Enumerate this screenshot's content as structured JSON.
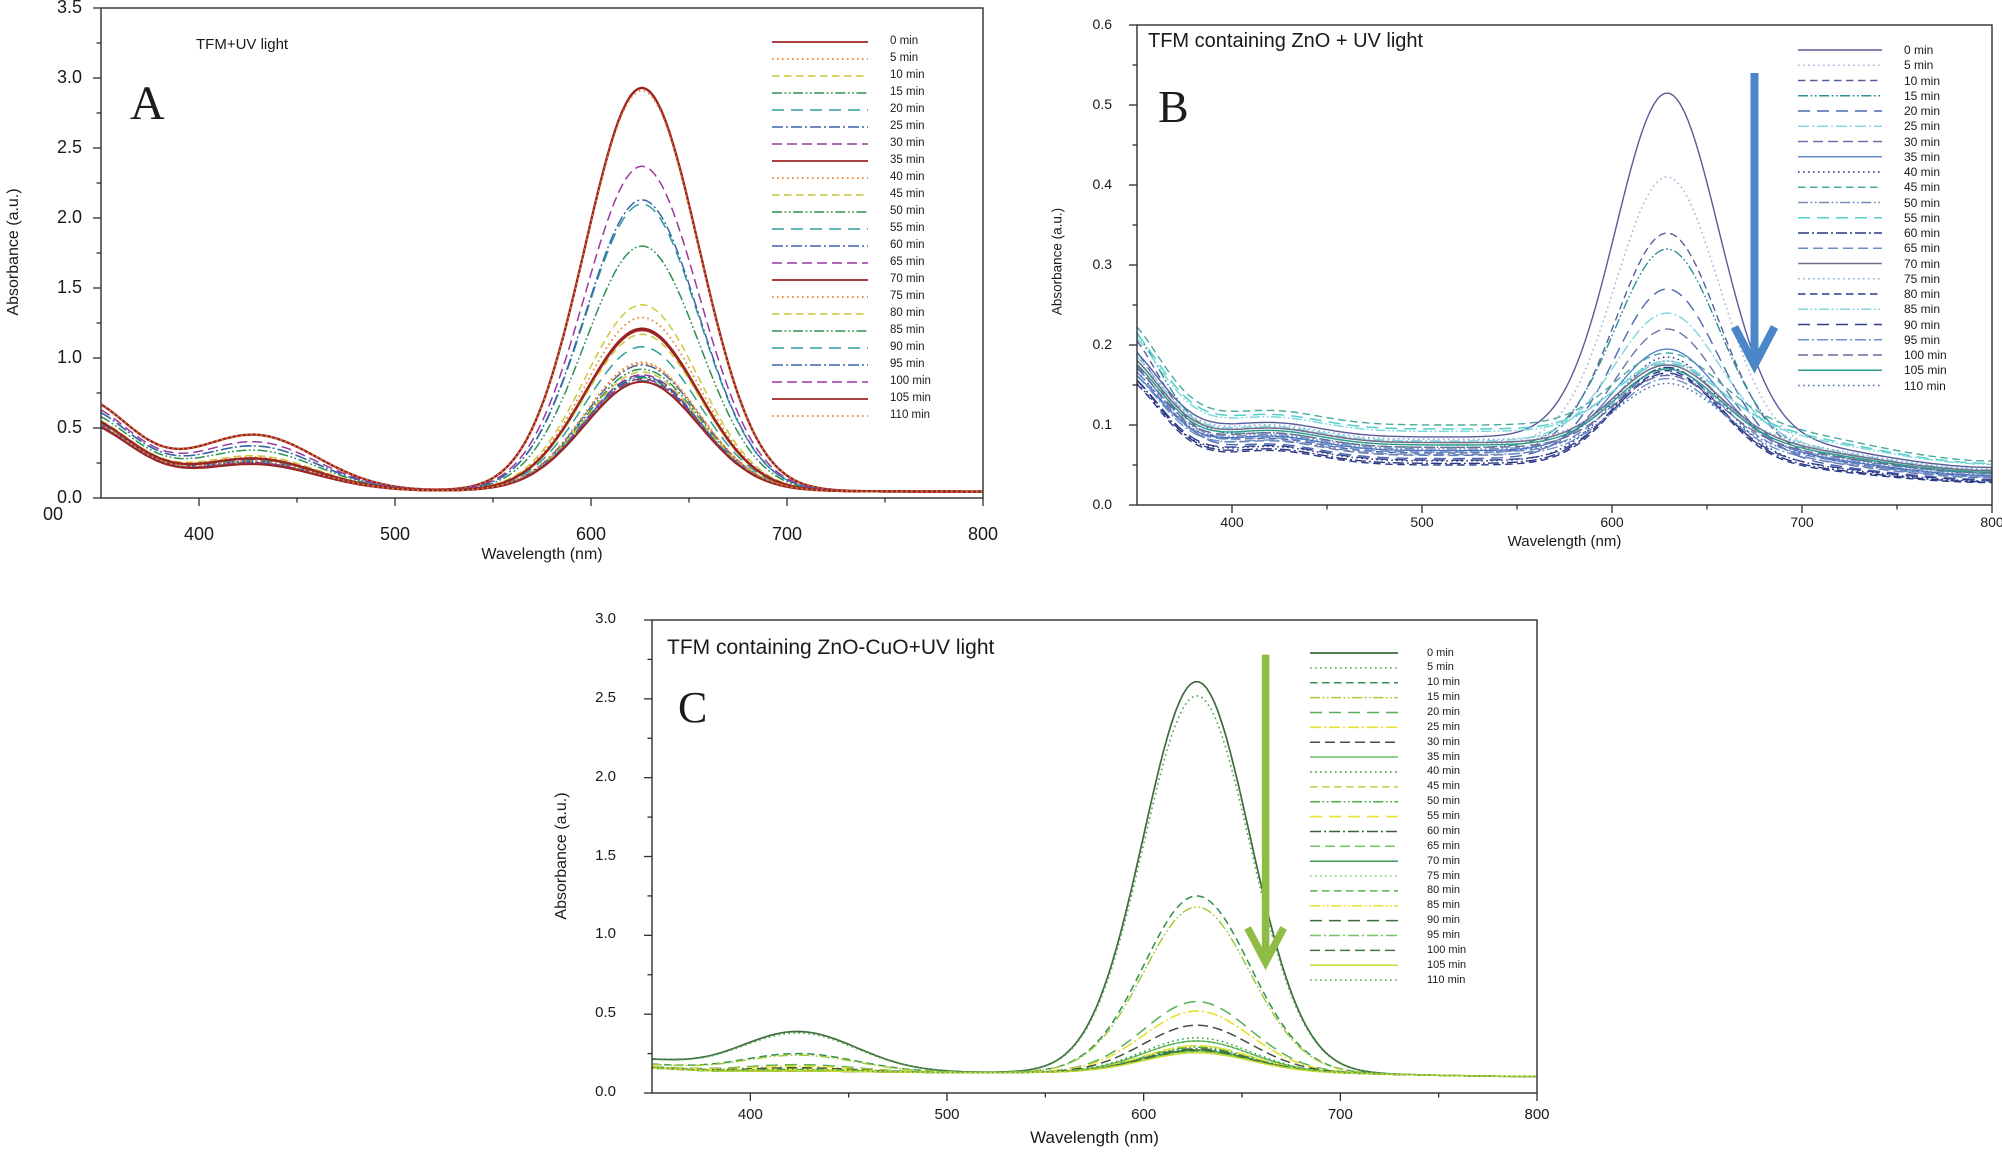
{
  "figure": {
    "background": "#ffffff"
  },
  "chart_data": [
    {
      "id": "A",
      "type": "line",
      "panel_letter": "A",
      "title": "TFM+UV light",
      "xlabel": "Wavelength (nm)",
      "ylabel": "Absorbance (a.u.)",
      "xlim": [
        350,
        800
      ],
      "ylim": [
        0,
        3.5
      ],
      "x_ticks": [
        400,
        500,
        600,
        700,
        800
      ],
      "x_minor_ticks": [
        450,
        550,
        650,
        750
      ],
      "y_tick_labels": [
        "0.0",
        "0.5",
        "1.0",
        "1.5",
        "2.0",
        "2.5",
        "3.0",
        "3.5"
      ],
      "y_minor_step": 0.25,
      "corner_label": "00",
      "legend_loc": "inside right",
      "grid": false,
      "peak_wavelength_nm": 626,
      "model": {
        "base": 0.05,
        "tail": 0.046,
        "peakMu": 626,
        "peakSig": 29,
        "bumpMu": 428,
        "bumpSig": 32,
        "leftMu": 338,
        "leftSig": 27
      },
      "series": [
        {
          "label": "0 min",
          "color": "#9b2423",
          "dash": "solid",
          "lw": 2.4,
          "peak": 2.93,
          "left": 0.71,
          "bump": 0.45
        },
        {
          "label": "5 min",
          "color": "#e8842e",
          "dash": "dotted",
          "lw": 1.8,
          "peak": 2.91,
          "left": 0.71,
          "bump": 0.45
        },
        {
          "label": "10 min",
          "color": "#c9c93b",
          "dash": "dashed",
          "lw": 1.5,
          "peak": 1.38,
          "left": 0.59,
          "bump": 0.3
        },
        {
          "label": "15 min",
          "color": "#2e9150",
          "dash": "dash-dot-dot",
          "lw": 1.5,
          "peak": 1.8,
          "left": 0.62,
          "bump": 0.34
        },
        {
          "label": "20 min",
          "color": "#2e9d9d",
          "dash": "long-dash",
          "lw": 1.5,
          "peak": 2.1,
          "left": 0.65,
          "bump": 0.37
        },
        {
          "label": "25 min",
          "color": "#3c63a8",
          "dash": "dash-dot",
          "lw": 1.5,
          "peak": 2.13,
          "left": 0.65,
          "bump": 0.37
        },
        {
          "label": "30 min",
          "color": "#99399d",
          "dash": "medium-dash",
          "lw": 1.5,
          "peak": 2.37,
          "left": 0.67,
          "bump": 0.4
        },
        {
          "label": "35 min",
          "color": "#9b2423",
          "dash": "solid",
          "lw": 2.4,
          "peak": 1.2,
          "left": 0.58,
          "bump": 0.28
        },
        {
          "label": "40 min",
          "color": "#e8842e",
          "dash": "dotted",
          "lw": 1.8,
          "peak": 1.29,
          "left": 0.58,
          "bump": 0.29
        },
        {
          "label": "45 min",
          "color": "#c9c93b",
          "dash": "dashed",
          "lw": 1.5,
          "peak": 1.17,
          "left": 0.57,
          "bump": 0.28
        },
        {
          "label": "50 min",
          "color": "#2e9150",
          "dash": "dash-dot-dot",
          "lw": 1.5,
          "peak": 0.92,
          "left": 0.55,
          "bump": 0.25
        },
        {
          "label": "55 min",
          "color": "#2e9d9d",
          "dash": "long-dash",
          "lw": 1.5,
          "peak": 1.08,
          "left": 0.57,
          "bump": 0.27
        },
        {
          "label": "60 min",
          "color": "#3c63a8",
          "dash": "dash-dot",
          "lw": 1.5,
          "peak": 0.95,
          "left": 0.56,
          "bump": 0.26
        },
        {
          "label": "65 min",
          "color": "#99399d",
          "dash": "medium-dash",
          "lw": 1.5,
          "peak": 0.88,
          "left": 0.55,
          "bump": 0.25
        },
        {
          "label": "70 min",
          "color": "#9b2423",
          "dash": "solid",
          "lw": 2.4,
          "peak": 1.21,
          "left": 0.58,
          "bump": 0.28
        },
        {
          "label": "75 min",
          "color": "#e8842e",
          "dash": "dotted",
          "lw": 1.8,
          "peak": 0.97,
          "left": 0.56,
          "bump": 0.26
        },
        {
          "label": "80 min",
          "color": "#c9c93b",
          "dash": "dashed",
          "lw": 1.5,
          "peak": 0.9,
          "left": 0.55,
          "bump": 0.25
        },
        {
          "label": "85 min",
          "color": "#2e9150",
          "dash": "dash-dot-dot",
          "lw": 1.5,
          "peak": 0.86,
          "left": 0.55,
          "bump": 0.25
        },
        {
          "label": "90 min",
          "color": "#2e9d9d",
          "dash": "long-dash",
          "lw": 1.5,
          "peak": 0.84,
          "left": 0.55,
          "bump": 0.24
        },
        {
          "label": "95 min",
          "color": "#3c63a8",
          "dash": "dash-dot",
          "lw": 1.5,
          "peak": 0.87,
          "left": 0.55,
          "bump": 0.25
        },
        {
          "label": "100 min",
          "color": "#99399d",
          "dash": "medium-dash",
          "lw": 1.5,
          "peak": 0.85,
          "left": 0.55,
          "bump": 0.25
        },
        {
          "label": "105 min",
          "color": "#9b2423",
          "dash": "solid",
          "lw": 2.0,
          "peak": 0.83,
          "left": 0.54,
          "bump": 0.24
        },
        {
          "label": "110 min",
          "color": "#e8842e",
          "dash": "dotted",
          "lw": 1.8,
          "peak": 0.96,
          "left": 0.56,
          "bump": 0.26
        }
      ]
    },
    {
      "id": "B",
      "type": "line",
      "panel_letter": "B",
      "title": "TFM containing ZnO + UV light",
      "xlabel": "Wavelength (nm)",
      "ylabel": "Absorbance (a.u.)",
      "xlim": [
        350,
        800
      ],
      "ylim": [
        0,
        0.6
      ],
      "x_ticks": [
        400,
        500,
        600,
        700,
        800
      ],
      "x_minor_ticks": [
        450,
        550,
        650,
        750
      ],
      "y_tick_labels": [
        "0.0",
        "0.1",
        "0.2",
        "0.3",
        "0.4",
        "0.5",
        "0.6"
      ],
      "y_minor_step": 0.05,
      "legend_loc": "inside right",
      "grid": false,
      "peak_wavelength_nm": 629,
      "arrow": {
        "color": "#4a86c8",
        "direction": "down",
        "x_nm": 675,
        "from_abs": 0.54,
        "to_abs": 0.175,
        "width": 8,
        "head": 20
      },
      "model": {
        "peakMu": 629,
        "peakSig": 27,
        "bumpMu": 420,
        "bumpSig": 26,
        "leftMu": 338,
        "leftSig": 23
      },
      "series": [
        {
          "label": "0 min",
          "color": "#5a5a9a",
          "dash": "solid",
          "lw": 1.4,
          "peak": 0.515,
          "left": 0.205,
          "bump": 0.103,
          "base": 0.085,
          "tail": 0.047
        },
        {
          "label": "5 min",
          "color": "#9fb8d8",
          "dash": "dotted",
          "lw": 1.6,
          "peak": 0.41,
          "left": 0.185,
          "bump": 0.093,
          "base": 0.075,
          "tail": 0.041
        },
        {
          "label": "10 min",
          "color": "#565fa0",
          "dash": "dashed",
          "lw": 1.4,
          "peak": 0.34,
          "left": 0.225,
          "bump": 0.083,
          "base": 0.065,
          "tail": 0.036
        },
        {
          "label": "15 min",
          "color": "#2f8f96",
          "dash": "dash-dot-dot",
          "lw": 1.4,
          "peak": 0.32,
          "left": 0.235,
          "bump": 0.09,
          "base": 0.072,
          "tail": 0.04
        },
        {
          "label": "20 min",
          "color": "#4a69b0",
          "dash": "long-dash",
          "lw": 1.4,
          "peak": 0.27,
          "left": 0.21,
          "bump": 0.076,
          "base": 0.058,
          "tail": 0.032
        },
        {
          "label": "25 min",
          "color": "#8cd6e0",
          "dash": "dash-dot",
          "lw": 1.5,
          "peak": 0.24,
          "left": 0.2,
          "bump": 0.098,
          "base": 0.08,
          "tail": 0.044
        },
        {
          "label": "30 min",
          "color": "#6b74a8",
          "dash": "medium-dash",
          "lw": 1.4,
          "peak": 0.22,
          "left": 0.19,
          "bump": 0.08,
          "base": 0.062,
          "tail": 0.034
        },
        {
          "label": "35 min",
          "color": "#4a78c8",
          "dash": "solid",
          "lw": 1.3,
          "peak": 0.195,
          "left": 0.175,
          "bump": 0.086,
          "base": 0.068,
          "tail": 0.037
        },
        {
          "label": "40 min",
          "color": "#2a3a7c",
          "dash": "dotted",
          "lw": 1.5,
          "peak": 0.185,
          "left": 0.165,
          "bump": 0.073,
          "base": 0.055,
          "tail": 0.03
        },
        {
          "label": "45 min",
          "color": "#49a8a0",
          "dash": "dashed",
          "lw": 1.4,
          "peak": 0.19,
          "left": 0.24,
          "bump": 0.118,
          "base": 0.1,
          "tail": 0.055
        },
        {
          "label": "50 min",
          "color": "#7a8cba",
          "dash": "dash-dot-dot",
          "lw": 1.4,
          "peak": 0.18,
          "left": 0.185,
          "bump": 0.088,
          "base": 0.07,
          "tail": 0.039
        },
        {
          "label": "55 min",
          "color": "#55cfcb",
          "dash": "long-dash",
          "lw": 1.5,
          "peak": 0.177,
          "left": 0.23,
          "bump": 0.113,
          "base": 0.095,
          "tail": 0.052
        },
        {
          "label": "60 min",
          "color": "#2a3580",
          "dash": "dash-dot",
          "lw": 1.4,
          "peak": 0.172,
          "left": 0.17,
          "bump": 0.07,
          "base": 0.052,
          "tail": 0.029
        },
        {
          "label": "65 min",
          "color": "#6a8cc8",
          "dash": "medium-dash",
          "lw": 1.4,
          "peak": 0.17,
          "left": 0.18,
          "bump": 0.084,
          "base": 0.066,
          "tail": 0.036
        },
        {
          "label": "70 min",
          "color": "#70708e",
          "dash": "solid",
          "lw": 1.6,
          "peak": 0.175,
          "left": 0.195,
          "bump": 0.096,
          "base": 0.078,
          "tail": 0.043
        },
        {
          "label": "75 min",
          "color": "#88aad0",
          "dash": "dotted",
          "lw": 1.5,
          "peak": 0.163,
          "left": 0.2,
          "bump": 0.1,
          "base": 0.082,
          "tail": 0.045
        },
        {
          "label": "80 min",
          "color": "#2a3a8a",
          "dash": "dashed",
          "lw": 1.4,
          "peak": 0.168,
          "left": 0.165,
          "bump": 0.068,
          "base": 0.05,
          "tail": 0.028
        },
        {
          "label": "85 min",
          "color": "#80d8dc",
          "dash": "dash-dot-dot",
          "lw": 1.5,
          "peak": 0.18,
          "left": 0.225,
          "bump": 0.11,
          "base": 0.092,
          "tail": 0.051
        },
        {
          "label": "90 min",
          "color": "#323c8c",
          "dash": "long-dash",
          "lw": 1.4,
          "peak": 0.165,
          "left": 0.17,
          "bump": 0.074,
          "base": 0.056,
          "tail": 0.031
        },
        {
          "label": "95 min",
          "color": "#6a90c8",
          "dash": "dash-dot",
          "lw": 1.4,
          "peak": 0.158,
          "left": 0.175,
          "bump": 0.081,
          "base": 0.063,
          "tail": 0.035
        },
        {
          "label": "100 min",
          "color": "#6a6a9a",
          "dash": "medium-dash",
          "lw": 1.4,
          "peak": 0.162,
          "left": 0.185,
          "bump": 0.09,
          "base": 0.072,
          "tail": 0.04
        },
        {
          "label": "105 min",
          "color": "#2a9a8a",
          "dash": "solid",
          "lw": 1.4,
          "peak": 0.17,
          "left": 0.19,
          "bump": 0.093,
          "base": 0.075,
          "tail": 0.041
        },
        {
          "label": "110 min",
          "color": "#4a6ab0",
          "dash": "dotted",
          "lw": 1.5,
          "peak": 0.152,
          "left": 0.18,
          "bump": 0.086,
          "base": 0.068,
          "tail": 0.037
        }
      ]
    },
    {
      "id": "C",
      "type": "line",
      "panel_letter": "C",
      "title": "TFM containing ZnO-CuO+UV light",
      "xlabel": "Wavelength (nm)",
      "ylabel": "Absorbance (a.u.)",
      "xlim": [
        350,
        800
      ],
      "ylim": [
        0,
        3.0
      ],
      "x_ticks": [
        400,
        500,
        600,
        700,
        800
      ],
      "x_minor_ticks": [
        450,
        550,
        650,
        750
      ],
      "y_tick_labels": [
        "0.0",
        "0.5",
        "1.0",
        "1.5",
        "2.0",
        "2.5",
        "3.0"
      ],
      "y_minor_step": 0.25,
      "legend_loc": "inside right",
      "grid": false,
      "peak_wavelength_nm": 627,
      "arrow": {
        "color": "#8fbc45",
        "direction": "down",
        "x_nm": 662,
        "from_abs": 2.78,
        "to_abs": 0.83,
        "width": 7.5,
        "head": 18
      },
      "model": {
        "base": 0.13,
        "tail": 0.105,
        "peakMu": 627,
        "peakSig": 27,
        "bumpMu": 424,
        "bumpSig": 30,
        "leftMu": 338,
        "leftSig": 25
      },
      "series": [
        {
          "label": "0 min",
          "color": "#3f6b3f",
          "dash": "solid",
          "lw": 1.7,
          "peak": 2.61,
          "left": 0.212,
          "bump": 0.39
        },
        {
          "label": "5 min",
          "color": "#4aa44a",
          "dash": "dotted",
          "lw": 1.6,
          "peak": 2.52,
          "left": 0.21,
          "bump": 0.38
        },
        {
          "label": "10 min",
          "color": "#2f8f4f",
          "dash": "dashed",
          "lw": 1.5,
          "peak": 1.25,
          "left": 0.183,
          "bump": 0.25
        },
        {
          "label": "15 min",
          "color": "#a2cc3a",
          "dash": "dash-dot-dot",
          "lw": 1.5,
          "peak": 1.18,
          "left": 0.181,
          "bump": 0.24
        },
        {
          "label": "20 min",
          "color": "#55b055",
          "dash": "long-dash",
          "lw": 1.5,
          "peak": 0.58,
          "left": 0.168,
          "bump": 0.18
        },
        {
          "label": "25 min",
          "color": "#e6df2e",
          "dash": "dash-dot",
          "lw": 1.6,
          "peak": 0.52,
          "left": 0.166,
          "bump": 0.17
        },
        {
          "label": "30 min",
          "color": "#41523f",
          "dash": "medium-dash",
          "lw": 1.5,
          "peak": 0.43,
          "left": 0.164,
          "bump": 0.16
        },
        {
          "label": "35 min",
          "color": "#62be57",
          "dash": "solid",
          "lw": 1.4,
          "peak": 0.33,
          "left": 0.162,
          "bump": 0.15
        },
        {
          "label": "40 min",
          "color": "#2f9a3f",
          "dash": "dotted",
          "lw": 1.5,
          "peak": 0.35,
          "left": 0.163,
          "bump": 0.15
        },
        {
          "label": "45 min",
          "color": "#b5d848",
          "dash": "dashed",
          "lw": 1.5,
          "peak": 0.3,
          "left": 0.162,
          "bump": 0.15
        },
        {
          "label": "50 min",
          "color": "#4fae46",
          "dash": "dash-dot-dot",
          "lw": 1.5,
          "peak": 0.29,
          "left": 0.161,
          "bump": 0.15
        },
        {
          "label": "55 min",
          "color": "#e8e332",
          "dash": "long-dash",
          "lw": 1.6,
          "peak": 0.3,
          "left": 0.162,
          "bump": 0.15
        },
        {
          "label": "60 min",
          "color": "#3f5f3f",
          "dash": "dash-dot",
          "lw": 1.5,
          "peak": 0.28,
          "left": 0.161,
          "bump": 0.14
        },
        {
          "label": "65 min",
          "color": "#78c468",
          "dash": "medium-dash",
          "lw": 1.5,
          "peak": 0.275,
          "left": 0.161,
          "bump": 0.14
        },
        {
          "label": "70 min",
          "color": "#2a8f4a",
          "dash": "solid",
          "lw": 1.4,
          "peak": 0.27,
          "left": 0.161,
          "bump": 0.14
        },
        {
          "label": "75 min",
          "color": "#8cc87c",
          "dash": "dotted",
          "lw": 1.5,
          "peak": 0.268,
          "left": 0.161,
          "bump": 0.14
        },
        {
          "label": "80 min",
          "color": "#55b055",
          "dash": "dashed",
          "lw": 1.5,
          "peak": 0.265,
          "left": 0.161,
          "bump": 0.14
        },
        {
          "label": "85 min",
          "color": "#e6e23a",
          "dash": "dash-dot-dot",
          "lw": 1.6,
          "peak": 0.26,
          "left": 0.161,
          "bump": 0.14
        },
        {
          "label": "90 min",
          "color": "#3f6b3f",
          "dash": "long-dash",
          "lw": 1.5,
          "peak": 0.275,
          "left": 0.161,
          "bump": 0.14
        },
        {
          "label": "95 min",
          "color": "#74c464",
          "dash": "dash-dot",
          "lw": 1.5,
          "peak": 0.265,
          "left": 0.161,
          "bump": 0.14
        },
        {
          "label": "100 min",
          "color": "#3a7a3f",
          "dash": "medium-dash",
          "lw": 1.5,
          "peak": 0.27,
          "left": 0.161,
          "bump": 0.14
        },
        {
          "label": "105 min",
          "color": "#c6da36",
          "dash": "solid",
          "lw": 1.5,
          "peak": 0.255,
          "left": 0.161,
          "bump": 0.14
        },
        {
          "label": "110 min",
          "color": "#4aa44a",
          "dash": "dotted",
          "lw": 1.5,
          "peak": 0.33,
          "left": 0.162,
          "bump": 0.15
        }
      ]
    }
  ]
}
